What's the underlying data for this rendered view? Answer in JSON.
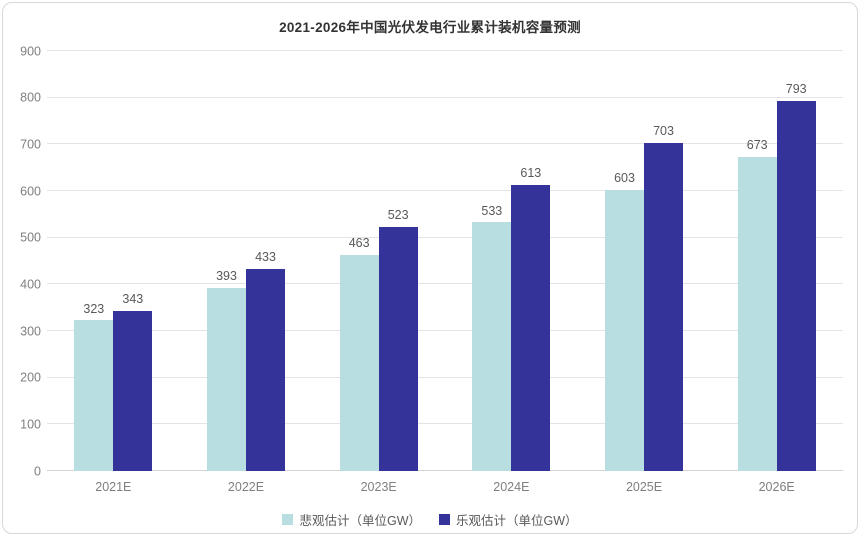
{
  "chart_data": {
    "type": "bar",
    "title": "2021-2026年中国光伏发电行业累计装机容量预测",
    "categories": [
      "2021E",
      "2022E",
      "2023E",
      "2024E",
      "2025E",
      "2026E"
    ],
    "series": [
      {
        "name": "悲观估计（单位GW）",
        "color": "#b9dee2",
        "values": [
          323,
          393,
          463,
          533,
          603,
          673
        ]
      },
      {
        "name": "乐观估计（单位GW）",
        "color": "#333399",
        "values": [
          343,
          433,
          523,
          613,
          703,
          793
        ]
      }
    ],
    "xlabel": "",
    "ylabel": "",
    "ylim": [
      0,
      900
    ],
    "y_ticks": [
      0,
      100,
      200,
      300,
      400,
      500,
      600,
      700,
      800,
      900
    ],
    "grid": "horizontal",
    "legend_position": "bottom",
    "value_labels": true,
    "colors": {
      "value_label_text": "#595959",
      "axis_tick_text": "#7f7f7f",
      "gridline": "#e4e4e4",
      "card_border": "#d8d8d8",
      "title_text": "#333333"
    }
  }
}
